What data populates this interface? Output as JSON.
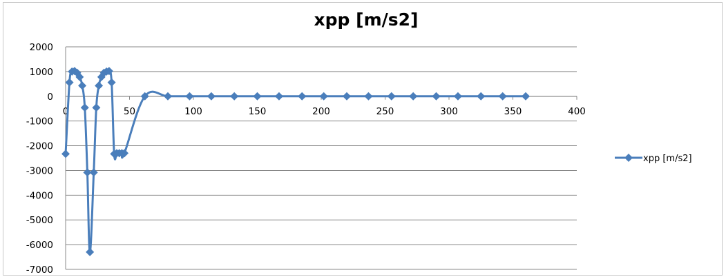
{
  "chart_data": {
    "type": "scatter",
    "title": "xpp [m/s2]",
    "xlabel": "",
    "ylabel": "",
    "xlim": [
      0,
      400
    ],
    "ylim": [
      -7000,
      2000
    ],
    "xticks": [
      0,
      50,
      100,
      150,
      200,
      250,
      300,
      350,
      400
    ],
    "yticks": [
      2000,
      1000,
      0,
      -1000,
      -2000,
      -3000,
      -4000,
      -5000,
      -6000,
      -7000
    ],
    "grid": "horizontal",
    "legend": "right",
    "series": [
      {
        "name": "xpp [m/s2]",
        "color": "#4a7ebb",
        "marker": "diamond",
        "line": "smooth",
        "x": [
          0,
          3,
          5,
          7,
          9,
          11,
          13,
          15,
          17,
          19,
          22,
          24,
          26,
          28,
          30,
          32,
          34,
          36,
          38,
          40,
          42,
          44,
          46,
          62,
          80,
          97,
          114,
          132,
          150,
          167,
          185,
          202,
          220,
          237,
          255,
          272,
          290,
          307,
          325,
          342,
          360
        ],
        "y": [
          -2330,
          560,
          1000,
          1020,
          950,
          780,
          430,
          -460,
          -3080,
          -6300,
          -3080,
          -460,
          430,
          780,
          950,
          1000,
          1020,
          560,
          -2330,
          -2300,
          -2300,
          -2300,
          -2300,
          0,
          0,
          0,
          0,
          0,
          0,
          0,
          0,
          0,
          0,
          0,
          0,
          0,
          0,
          0,
          0,
          0,
          0
        ]
      }
    ]
  }
}
